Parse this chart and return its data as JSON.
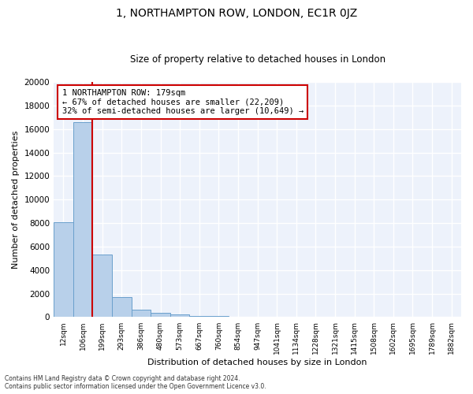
{
  "title": "1, NORTHAMPTON ROW, LONDON, EC1R 0JZ",
  "subtitle": "Size of property relative to detached houses in London",
  "xlabel": "Distribution of detached houses by size in London",
  "ylabel": "Number of detached properties",
  "bar_heights": [
    8100,
    16600,
    5300,
    1700,
    650,
    350,
    200,
    100,
    80,
    60,
    50,
    40,
    30,
    25,
    20,
    15,
    10,
    8,
    5,
    3,
    2
  ],
  "bar_labels": [
    "12sqm",
    "106sqm",
    "199sqm",
    "293sqm",
    "386sqm",
    "480sqm",
    "573sqm",
    "667sqm",
    "760sqm",
    "854sqm",
    "947sqm",
    "1041sqm",
    "1134sqm",
    "1228sqm",
    "1321sqm",
    "1415sqm",
    "1508sqm",
    "1602sqm",
    "1695sqm",
    "1789sqm",
    "1882sqm"
  ],
  "bar_color": "#b8d0ea",
  "bar_edge_color": "#6aa0cc",
  "background_color": "#edf2fb",
  "grid_color": "#ffffff",
  "vline_color": "#cc0000",
  "annotation_title": "1 NORTHAMPTON ROW: 179sqm",
  "annotation_line1": "← 67% of detached houses are smaller (22,209)",
  "annotation_line2": "32% of semi-detached houses are larger (10,649) →",
  "ylim": [
    0,
    20000
  ],
  "yticks": [
    0,
    2000,
    4000,
    6000,
    8000,
    10000,
    12000,
    14000,
    16000,
    18000,
    20000
  ],
  "footer_line1": "Contains HM Land Registry data © Crown copyright and database right 2024.",
  "footer_line2": "Contains public sector information licensed under the Open Government Licence v3.0."
}
